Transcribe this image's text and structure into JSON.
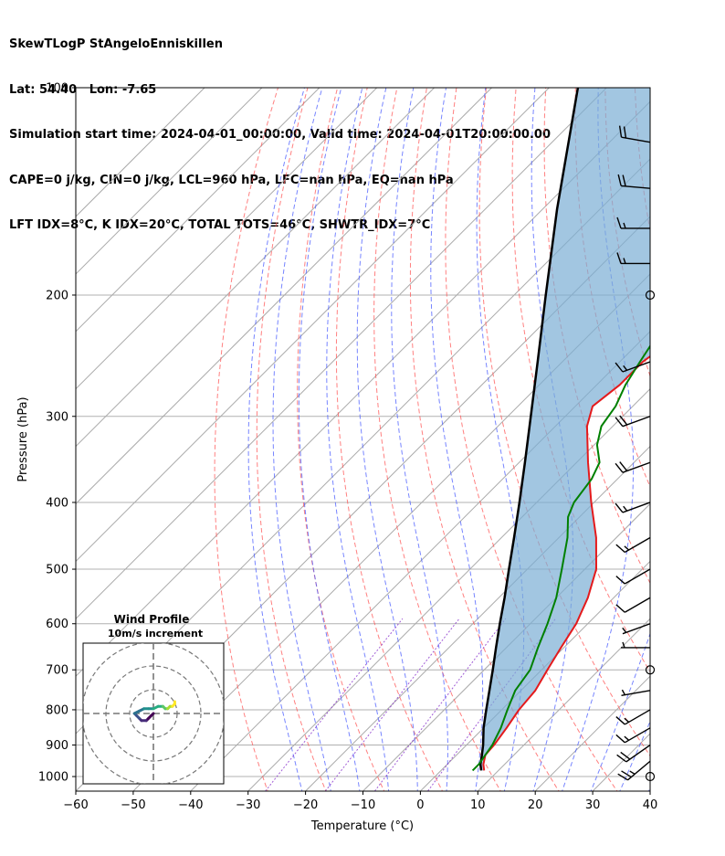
{
  "header": {
    "line1": "SkewTLogP StAngeloEnniskillen",
    "line2": "Lat: 54.40   Lon: -7.65",
    "line3": "Simulation start time: 2024-04-01_00:00:00, Valid time: 2024-04-01T20:00:00.00",
    "line4": "CAPE=0 j/kg, CIN=0 j/kg, LCL=960 hPa, LFC=nan hPa, EQ=nan hPa",
    "line5": "LFT IDX=8°C, K IDX=20°C, TOTAL TOTS=46°C, SHWTR_IDX=7°C"
  },
  "chart_data": {
    "type": "skew-t",
    "xlabel": "Temperature (°C)",
    "ylabel": "Pressure (hPa)",
    "xlim": [
      -60,
      40
    ],
    "ylim": [
      1050,
      100
    ],
    "y_scale": "log",
    "xticks": [
      -60,
      -50,
      -40,
      -30,
      -20,
      -10,
      0,
      10,
      20,
      30,
      40
    ],
    "xtick_labels": [
      "−60",
      "−50",
      "−40",
      "−30",
      "−20",
      "−10",
      "0",
      "10",
      "20",
      "30",
      "40"
    ],
    "yticks": [
      1000,
      900,
      800,
      700,
      600,
      500,
      400,
      300,
      200,
      100
    ],
    "grid": true,
    "colors": {
      "temperature": "#e41a1c",
      "dewpoint": "#008000",
      "parcel": "#000000",
      "cape_fill": "#7aaed4",
      "dry_adiabat": "#ff5555",
      "moist_adiabat": "#4a5cff",
      "mixing_ratio": "#8833cc",
      "isotherm": "#aaaaaa"
    },
    "temperature": {
      "p": [
        980,
        960,
        930,
        900,
        850,
        800,
        750,
        700,
        650,
        600,
        550,
        500,
        450,
        400,
        350,
        310,
        290,
        270,
        250,
        230,
        200,
        180,
        160,
        140,
        120,
        100
      ],
      "t": [
        7.5,
        6.3,
        5.0,
        4.8,
        4.0,
        3.0,
        2.5,
        1.0,
        -0.5,
        -2.0,
        -4.5,
        -8.0,
        -13.5,
        -20.5,
        -28.0,
        -34.5,
        -37.0,
        -36.0,
        -36.0,
        -34.5,
        -32.0,
        -29.0,
        -27.0,
        -25.5,
        -24.0,
        -23.0
      ]
    },
    "dewpoint": {
      "p": [
        980,
        960,
        930,
        900,
        850,
        800,
        750,
        700,
        650,
        600,
        550,
        500,
        450,
        420,
        400,
        370,
        350,
        330,
        310,
        290,
        270,
        250,
        230,
        210,
        200,
        180,
        160,
        140,
        120,
        100
      ],
      "t": [
        5.5,
        5.5,
        5.0,
        4.5,
        3.0,
        1.0,
        -1.0,
        -2.0,
        -4.5,
        -7.0,
        -10.0,
        -14.0,
        -18.5,
        -22.0,
        -23.5,
        -24.5,
        -26.0,
        -29.5,
        -32.0,
        -33.0,
        -35.0,
        -36.5,
        -38.0,
        -40.0,
        -41.0,
        -42.0,
        -42.0,
        -42.0,
        -41.5,
        -40.5
      ]
    },
    "parcel": {
      "p": [
        980,
        960,
        930,
        900,
        850,
        800,
        750,
        700,
        650,
        600,
        550,
        500,
        450,
        400,
        350,
        300,
        250,
        200,
        150,
        100
      ],
      "t": [
        7.0,
        5.8,
        4.4,
        2.9,
        0.0,
        -2.7,
        -5.5,
        -8.5,
        -11.8,
        -15.3,
        -19.0,
        -23.2,
        -27.8,
        -33.0,
        -39.0,
        -46.0,
        -54.3,
        -64.5,
        -77.5,
        -95.0
      ]
    },
    "wind_barbs": {
      "p": [
        1000,
        950,
        900,
        850,
        800,
        750,
        700,
        650,
        600,
        550,
        500,
        450,
        400,
        350,
        300,
        250,
        200,
        180,
        160,
        140,
        120
      ],
      "speed_kt": [
        0,
        25,
        20,
        15,
        15,
        5,
        0,
        5,
        5,
        10,
        10,
        15,
        15,
        20,
        20,
        15,
        0,
        15,
        15,
        20,
        20
      ],
      "direction_deg": [
        0,
        230,
        235,
        240,
        240,
        260,
        0,
        270,
        250,
        240,
        240,
        240,
        250,
        250,
        250,
        250,
        0,
        270,
        270,
        275,
        280
      ]
    },
    "hodograph": {
      "title": "Wind Profile",
      "subtitle": "10m/s increment",
      "u": [
        0,
        -1,
        -2,
        -3,
        -5,
        -6,
        -7,
        -8,
        -6,
        -4,
        -2,
        0,
        2,
        4,
        5,
        6,
        7,
        8,
        9,
        9
      ],
      "v": [
        0,
        -1,
        -2,
        -3,
        -3,
        -2,
        -1,
        0,
        1,
        2,
        2,
        2,
        3,
        3,
        2,
        2,
        3,
        3,
        4,
        5
      ]
    }
  }
}
